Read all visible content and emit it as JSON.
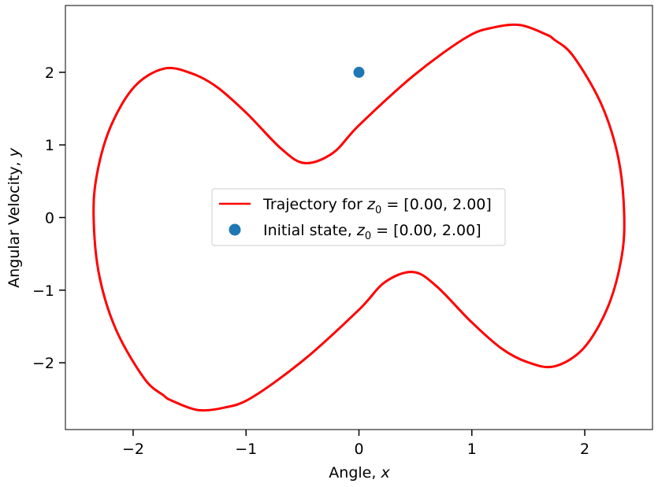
{
  "chart_data": {
    "type": "line",
    "title": "",
    "xlabel": "Angle, $x$",
    "ylabel": "Angular Velocity, $y$",
    "xlabel_parts": {
      "main": "Angle, ",
      "var": "x"
    },
    "ylabel_parts": {
      "main": "Angular Velocity, ",
      "var": "y"
    },
    "xlim": [
      -2.6,
      2.6
    ],
    "ylim": [
      -2.92,
      2.92
    ],
    "xticks": [
      -2,
      -1,
      0,
      1,
      2
    ],
    "yticks": [
      -2,
      -1,
      0,
      1,
      2
    ],
    "xtick_labels": [
      "−2",
      "−1",
      "0",
      "1",
      "2"
    ],
    "ytick_labels": [
      "−2",
      "−1",
      "0",
      "1",
      "2"
    ],
    "grid": false,
    "legend_position": "center",
    "series": [
      {
        "name": "Trajectory for $z_0=[0.00, 2.00]$",
        "kind": "line",
        "color": "#ff0000",
        "x": [
          0.0,
          0.48,
          0.95,
          1.2,
          1.43,
          1.66,
          1.73,
          1.9,
          2.15,
          2.3,
          2.35,
          2.32,
          2.2,
          1.99,
          1.73,
          1.49,
          1.26,
          0.99,
          0.69,
          0.48,
          0.23,
          0.0,
          -0.48,
          -0.95,
          -1.2,
          -1.43,
          -1.66,
          -1.73,
          -1.9,
          -2.15,
          -2.3,
          -2.35,
          -2.32,
          -2.2,
          -1.99,
          -1.73,
          -1.49,
          -1.26,
          -0.99,
          -0.69,
          -0.48,
          -0.23,
          0.0
        ],
        "y": [
          1.27,
          1.95,
          2.48,
          2.62,
          2.65,
          2.52,
          2.45,
          2.22,
          1.55,
          0.8,
          0.0,
          -0.6,
          -1.25,
          -1.8,
          -2.05,
          -1.99,
          -1.8,
          -1.43,
          -0.95,
          -0.75,
          -0.89,
          -1.27,
          -1.95,
          -2.48,
          -2.62,
          -2.65,
          -2.52,
          -2.45,
          -2.22,
          -1.55,
          -0.8,
          0.0,
          0.6,
          1.25,
          1.8,
          2.05,
          1.99,
          1.8,
          1.43,
          0.95,
          0.75,
          0.89,
          1.27
        ]
      },
      {
        "name": "Initial state, $z_0=[0.00, 2.00]$",
        "kind": "scatter",
        "color": "#1f77b4",
        "x": [
          0.0
        ],
        "y": [
          2.0
        ]
      }
    ],
    "legend_entries": [
      {
        "main": "Trajectory for ",
        "var": "z",
        "sub": "0",
        "rest": " = [0.00, 2.00]"
      },
      {
        "main": "Initial state, ",
        "var": "z",
        "sub": "0",
        "rest": " = [0.00, 2.00]"
      }
    ]
  }
}
